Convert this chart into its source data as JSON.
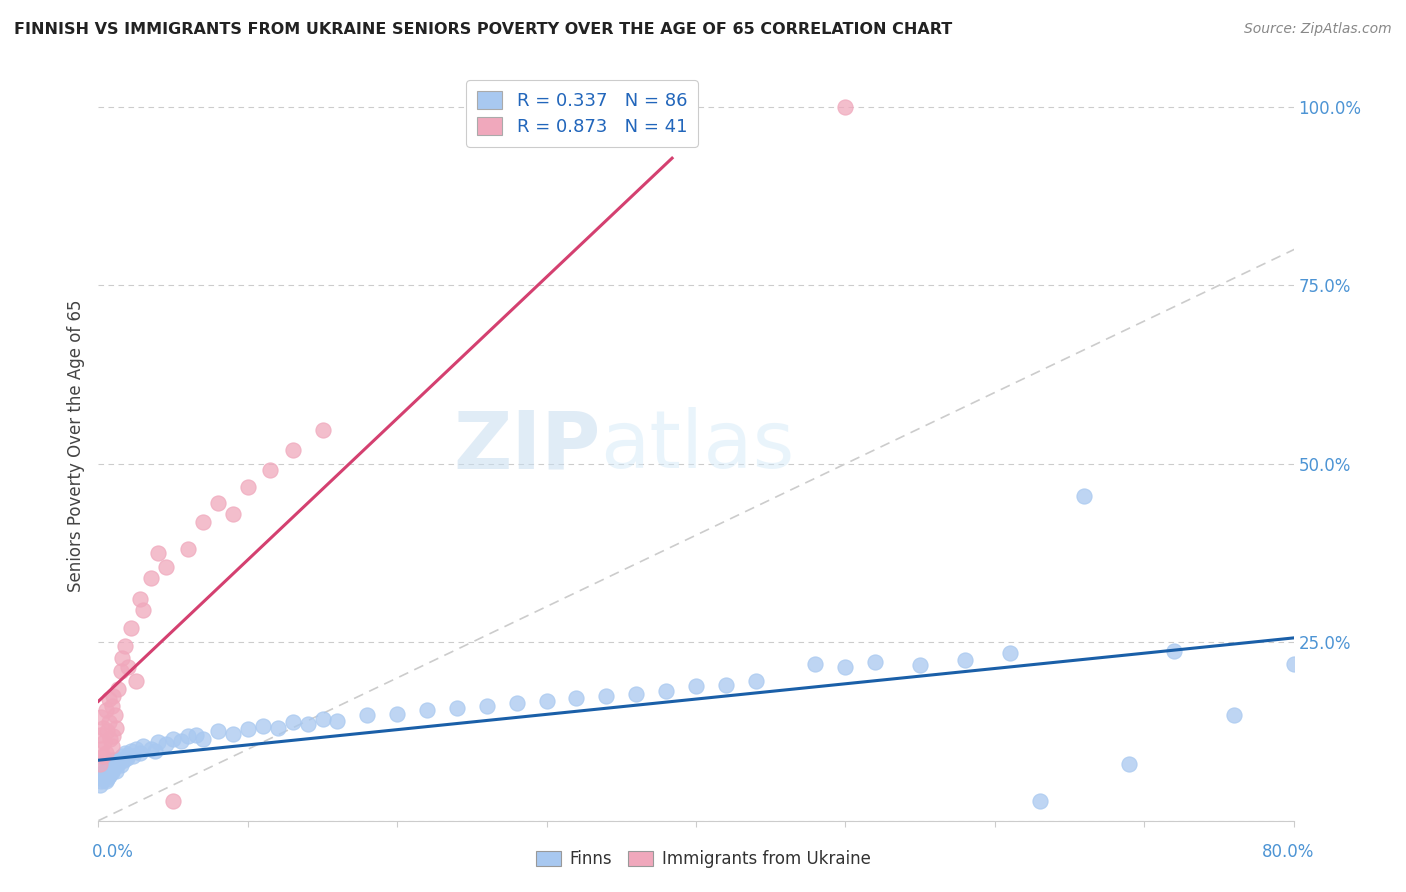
{
  "title": "FINNISH VS IMMIGRANTS FROM UKRAINE SENIORS POVERTY OVER THE AGE OF 65 CORRELATION CHART",
  "source": "Source: ZipAtlas.com",
  "ylabel": "Seniors Poverty Over the Age of 65",
  "watermark_zip": "ZIP",
  "watermark_atlas": "atlas",
  "legend_finn": "Finns",
  "legend_ukraine": "Immigrants from Ukraine",
  "finn_R": 0.337,
  "finn_N": 86,
  "ukraine_R": 0.873,
  "ukraine_N": 41,
  "finn_color": "#a8c8f0",
  "ukraine_color": "#f0a8bc",
  "finn_line_color": "#1a5fa8",
  "ukraine_line_color": "#d44070",
  "diag_color": "#cccccc",
  "xmin": 0.0,
  "xmax": 0.8,
  "ymin": 0.0,
  "ymax": 1.05,
  "background_color": "#ffffff",
  "grid_color": "#cccccc",
  "title_color": "#222222",
  "right_axis_color": "#4d94d4",
  "finn_x": [
    0.001,
    0.002,
    0.002,
    0.003,
    0.003,
    0.003,
    0.004,
    0.004,
    0.005,
    0.005,
    0.005,
    0.006,
    0.006,
    0.006,
    0.007,
    0.007,
    0.007,
    0.008,
    0.008,
    0.008,
    0.009,
    0.009,
    0.009,
    0.01,
    0.01,
    0.011,
    0.011,
    0.012,
    0.012,
    0.013,
    0.014,
    0.015,
    0.016,
    0.017,
    0.018,
    0.019,
    0.02,
    0.022,
    0.023,
    0.025,
    0.028,
    0.03,
    0.035,
    0.038,
    0.04,
    0.045,
    0.05,
    0.055,
    0.06,
    0.065,
    0.07,
    0.08,
    0.09,
    0.1,
    0.11,
    0.12,
    0.13,
    0.14,
    0.15,
    0.16,
    0.18,
    0.2,
    0.22,
    0.24,
    0.26,
    0.28,
    0.3,
    0.32,
    0.34,
    0.36,
    0.38,
    0.4,
    0.42,
    0.44,
    0.48,
    0.5,
    0.52,
    0.55,
    0.58,
    0.61,
    0.63,
    0.66,
    0.69,
    0.72,
    0.76,
    0.8
  ],
  "finn_y": [
    0.05,
    0.06,
    0.055,
    0.065,
    0.058,
    0.072,
    0.06,
    0.068,
    0.055,
    0.07,
    0.065,
    0.062,
    0.058,
    0.075,
    0.068,
    0.062,
    0.075,
    0.07,
    0.065,
    0.08,
    0.068,
    0.075,
    0.085,
    0.072,
    0.08,
    0.078,
    0.085,
    0.082,
    0.07,
    0.08,
    0.085,
    0.078,
    0.09,
    0.085,
    0.095,
    0.088,
    0.092,
    0.098,
    0.09,
    0.1,
    0.095,
    0.105,
    0.1,
    0.098,
    0.11,
    0.108,
    0.115,
    0.112,
    0.118,
    0.12,
    0.115,
    0.125,
    0.122,
    0.128,
    0.132,
    0.13,
    0.138,
    0.135,
    0.142,
    0.14,
    0.148,
    0.15,
    0.155,
    0.158,
    0.16,
    0.165,
    0.168,
    0.172,
    0.175,
    0.178,
    0.182,
    0.188,
    0.19,
    0.195,
    0.22,
    0.215,
    0.222,
    0.218,
    0.225,
    0.235,
    0.028,
    0.455,
    0.08,
    0.238,
    0.148,
    0.22
  ],
  "ukraine_x": [
    0.001,
    0.001,
    0.002,
    0.002,
    0.003,
    0.003,
    0.004,
    0.005,
    0.005,
    0.006,
    0.007,
    0.007,
    0.008,
    0.009,
    0.009,
    0.01,
    0.01,
    0.011,
    0.012,
    0.013,
    0.015,
    0.016,
    0.018,
    0.02,
    0.022,
    0.025,
    0.028,
    0.03,
    0.035,
    0.04,
    0.045,
    0.05,
    0.06,
    0.07,
    0.08,
    0.09,
    0.1,
    0.115,
    0.13,
    0.15,
    0.5
  ],
  "ukraine_y": [
    0.08,
    0.12,
    0.1,
    0.145,
    0.09,
    0.13,
    0.11,
    0.095,
    0.155,
    0.125,
    0.138,
    0.17,
    0.115,
    0.105,
    0.16,
    0.118,
    0.175,
    0.148,
    0.13,
    0.185,
    0.21,
    0.228,
    0.245,
    0.215,
    0.27,
    0.195,
    0.31,
    0.295,
    0.34,
    0.375,
    0.355,
    0.028,
    0.38,
    0.418,
    0.445,
    0.43,
    0.468,
    0.492,
    0.52,
    0.548,
    1.0
  ]
}
